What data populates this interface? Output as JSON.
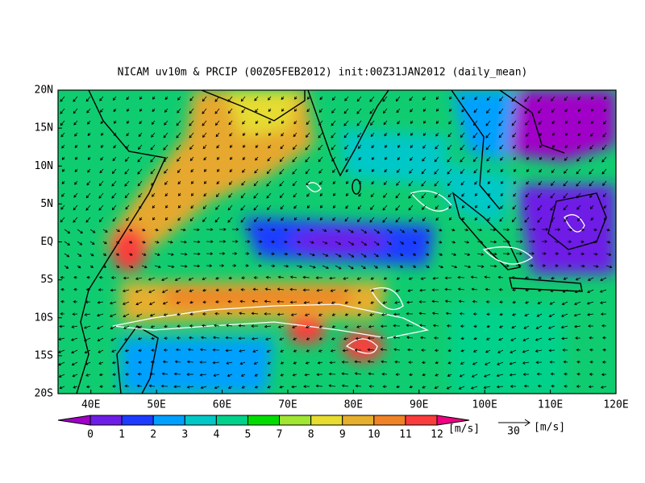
{
  "title": "NICAM uv10m & PRCIP (00Z05FEB2012) init:00Z31JAN2012 (daily_mean)",
  "lat_labels": [
    "20N",
    "15N",
    "10N",
    "5N",
    "EQ",
    "5S",
    "10S",
    "15S",
    "20S"
  ],
  "lon_labels": [
    "40E",
    "50E",
    "60E",
    "70E",
    "80E",
    "90E",
    "100E",
    "110E",
    "120E"
  ],
  "colorbar": {
    "colors": [
      "#a000c8",
      "#6e1ee6",
      "#1e3cff",
      "#00a0ff",
      "#00c8c8",
      "#00d28c",
      "#00dc00",
      "#a0e632",
      "#e6dc32",
      "#e6af2d",
      "#f08228",
      "#fa3c3c",
      "#f00082"
    ],
    "labels": [
      "0",
      "1",
      "2",
      "3",
      "4",
      "5",
      "7",
      "8",
      "9",
      "10",
      "11",
      "12"
    ],
    "unit": "[m/s]"
  },
  "reference_vector": {
    "label": "30",
    "unit": "[m/s]"
  }
}
